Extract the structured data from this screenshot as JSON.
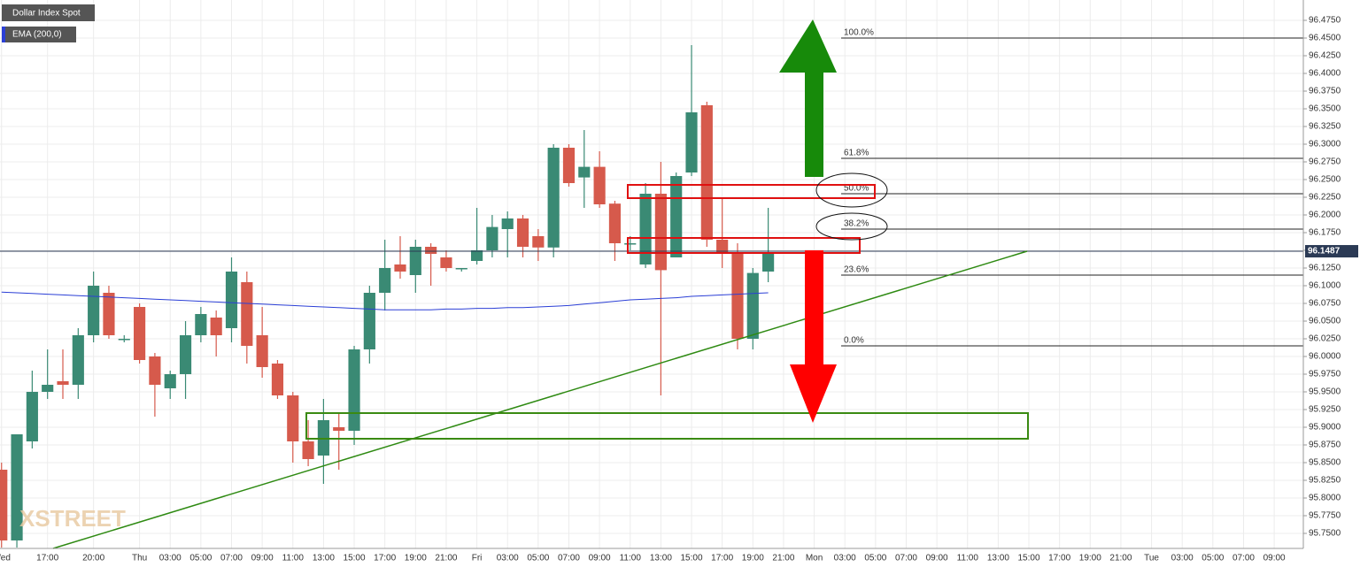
{
  "chart_data": {
    "type": "candlestick",
    "categories": [
      "Wed",
      null,
      null,
      "17:00",
      null,
      null,
      "20:00",
      null,
      null,
      "Thu",
      null,
      "03:00",
      null,
      "05:00",
      null,
      "07:00",
      null,
      "09:00",
      null,
      "11:00",
      null,
      "13:00",
      null,
      "15:00",
      null,
      "17:00",
      null,
      "19:00",
      null,
      "21:00",
      null,
      "Fri",
      null,
      "03:00",
      null,
      "05:00",
      null,
      "07:00",
      null,
      "09:00",
      null,
      "11:00",
      null,
      "13:00",
      null,
      "15:00",
      null,
      "17:00",
      null,
      "19:00",
      null,
      "21:00",
      null,
      "Mon",
      null,
      "03:00",
      null,
      "05:00",
      null,
      "07:00",
      null,
      "09:00",
      null,
      "11:00",
      null,
      "13:00",
      null,
      "15:00",
      null,
      "17:00",
      null,
      "19:00",
      null,
      "21:00",
      null,
      "Tue",
      null,
      "03:00",
      null,
      "05:00",
      null,
      "07:00",
      null,
      "09:00",
      null
    ],
    "series": [
      {
        "name": "Dollar Index Spot",
        "up_color": "#3a8a74",
        "down_color": "#d65a4c",
        "open": [
          95.84,
          95.74,
          95.88,
          95.95,
          95.965,
          95.96,
          96.03,
          96.09,
          96.025,
          96.07,
          96.0,
          95.955,
          95.975,
          96.03,
          96.055,
          96.04,
          96.105,
          96.03,
          95.99,
          95.945,
          95.88,
          95.86,
          95.9,
          95.895,
          96.01,
          96.09,
          96.13,
          96.115,
          96.155,
          96.14,
          96.125,
          96.135,
          96.15,
          96.18,
          96.195,
          96.17,
          96.154,
          96.295,
          96.253,
          96.268,
          96.216,
          96.16,
          96.13,
          96.23,
          96.14,
          96.26,
          96.355,
          96.165,
          96.145,
          96.025,
          96.12,
          null,
          null,
          null,
          null,
          null,
          null,
          null,
          null,
          null,
          null,
          null,
          null,
          null,
          null,
          null,
          null,
          null,
          null,
          null,
          null,
          null,
          null,
          null,
          null,
          null,
          null,
          null,
          null,
          null,
          null,
          null,
          null,
          null,
          null
        ],
        "high": [
          95.85,
          95.89,
          95.98,
          96.01,
          96.01,
          96.04,
          96.12,
          96.1,
          96.03,
          96.075,
          96.005,
          95.98,
          96.05,
          96.07,
          96.065,
          96.14,
          96.12,
          96.07,
          95.995,
          95.95,
          95.91,
          95.94,
          95.92,
          96.015,
          96.1,
          96.165,
          96.17,
          96.165,
          96.16,
          96.15,
          96.125,
          96.21,
          96.2,
          96.205,
          96.2,
          96.18,
          96.3,
          96.3,
          96.32,
          96.29,
          96.22,
          96.17,
          96.245,
          96.275,
          96.26,
          96.44,
          96.36,
          96.225,
          96.16,
          96.125,
          96.21,
          null,
          null,
          null,
          null,
          null,
          null,
          null,
          null,
          null,
          null,
          null,
          null,
          null,
          null,
          null,
          null,
          null,
          null,
          null,
          null,
          null,
          null,
          null,
          null,
          null,
          null,
          null,
          null,
          null,
          null,
          null,
          null,
          null,
          null
        ],
        "low": [
          95.73,
          95.73,
          95.87,
          95.94,
          95.94,
          95.94,
          96.02,
          96.025,
          96.02,
          95.99,
          95.915,
          95.94,
          95.94,
          96.02,
          96.0,
          96.02,
          95.99,
          95.97,
          95.94,
          95.85,
          95.845,
          95.82,
          95.84,
          95.875,
          95.99,
          96.065,
          96.11,
          96.09,
          96.1,
          96.12,
          96.12,
          96.13,
          96.14,
          96.14,
          96.14,
          96.135,
          96.14,
          96.24,
          96.21,
          96.21,
          96.135,
          96.15,
          96.125,
          95.945,
          96.14,
          96.255,
          96.155,
          96.125,
          96.01,
          96.01,
          96.105,
          null,
          null,
          null,
          null,
          null,
          null,
          null,
          null,
          null,
          null,
          null,
          null,
          null,
          null,
          null,
          null,
          null,
          null,
          null,
          null,
          null,
          null,
          null,
          null,
          null,
          null,
          null,
          null,
          null,
          null,
          null,
          null,
          null,
          null
        ],
        "close": [
          95.74,
          95.89,
          95.95,
          95.96,
          95.96,
          96.03,
          96.1,
          96.03,
          96.025,
          95.995,
          95.96,
          95.975,
          96.03,
          96.06,
          96.03,
          96.12,
          96.015,
          95.985,
          95.945,
          95.88,
          95.855,
          95.91,
          95.895,
          96.01,
          96.09,
          96.125,
          96.12,
          96.155,
          96.145,
          96.125,
          96.125,
          96.15,
          96.183,
          96.195,
          96.155,
          96.154,
          96.295,
          96.245,
          96.268,
          96.215,
          96.16,
          96.16,
          96.23,
          96.122,
          96.255,
          96.345,
          96.165,
          96.147,
          96.025,
          96.118,
          96.147,
          null,
          null,
          null,
          null,
          null,
          null,
          null,
          null,
          null,
          null,
          null,
          null,
          null,
          null,
          null,
          null,
          null,
          null,
          null,
          null,
          null,
          null,
          null,
          null,
          null,
          null,
          null,
          null,
          null,
          null,
          null,
          null,
          null,
          null
        ]
      },
      {
        "name": "EMA (200,0)",
        "type": "line",
        "color": "#2b3fd6",
        "values": [
          96.091,
          96.09,
          96.089,
          96.088,
          96.087,
          96.086,
          96.085,
          96.084,
          96.083,
          96.082,
          96.081,
          96.08,
          96.079,
          96.078,
          96.077,
          96.076,
          96.075,
          96.074,
          96.073,
          96.072,
          96.071,
          96.07,
          96.069,
          96.068,
          96.067,
          96.066,
          96.066,
          96.066,
          96.066,
          96.067,
          96.067,
          96.068,
          96.068,
          96.069,
          96.069,
          96.07,
          96.071,
          96.072,
          96.074,
          96.076,
          96.078,
          96.08,
          96.081,
          96.082,
          96.083,
          96.085,
          96.086,
          96.087,
          96.088,
          96.089,
          96.09,
          null,
          null,
          null,
          null,
          null,
          null,
          null,
          null,
          null,
          null,
          null,
          null,
          null,
          null,
          null,
          null,
          null,
          null,
          null,
          null,
          null,
          null,
          null,
          null,
          null,
          null,
          null,
          null,
          null,
          null,
          null,
          null,
          null,
          null
        ]
      }
    ],
    "ylim": [
      95.72875,
      96.50375
    ],
    "yticks": [
      {
        "value": 95.75,
        "label": "95.7500"
      },
      {
        "value": 95.775,
        "label": "95.7750"
      },
      {
        "value": 95.8,
        "label": "95.8000"
      },
      {
        "value": 95.825,
        "label": "95.8250"
      },
      {
        "value": 95.85,
        "label": "95.8500"
      },
      {
        "value": 95.875,
        "label": "95.8750"
      },
      {
        "value": 95.9,
        "label": "95.9000"
      },
      {
        "value": 95.925,
        "label": "95.9250"
      },
      {
        "value": 95.95,
        "label": "95.9500"
      },
      {
        "value": 95.975,
        "label": "95.9750"
      },
      {
        "value": 96.0,
        "label": "96.0000"
      },
      {
        "value": 96.025,
        "label": "96.0250"
      },
      {
        "value": 96.05,
        "label": "96.0500"
      },
      {
        "value": 96.075,
        "label": "96.0750"
      },
      {
        "value": 96.1,
        "label": "96.1000"
      },
      {
        "value": 96.125,
        "label": "96.1250"
      },
      {
        "value": 96.15,
        "label": "96.1500"
      },
      {
        "value": 96.175,
        "label": "96.1750"
      },
      {
        "value": 96.2,
        "label": "96.2000"
      },
      {
        "value": 96.225,
        "label": "96.2250"
      },
      {
        "value": 96.25,
        "label": "96.2500"
      },
      {
        "value": 96.275,
        "label": "96.2750"
      },
      {
        "value": 96.3,
        "label": "96.3000"
      },
      {
        "value": 96.325,
        "label": "96.3250"
      },
      {
        "value": 96.35,
        "label": "96.3500"
      },
      {
        "value": 96.375,
        "label": "96.3750"
      },
      {
        "value": 96.4,
        "label": "96.4000"
      },
      {
        "value": 96.425,
        "label": "96.4250"
      },
      {
        "value": 96.45,
        "label": "96.4500"
      },
      {
        "value": 96.475,
        "label": "96.4750"
      }
    ],
    "grid": true,
    "current_price": 96.1487,
    "fib_levels": {
      "labels": [
        "100.0%",
        "61.8%",
        "50.0%",
        "38.2%",
        "23.6%",
        "0.0%"
      ],
      "prices": [
        96.45,
        96.28,
        96.23,
        96.18,
        96.115,
        96.015
      ]
    },
    "watermark": "XSTREET"
  }
}
